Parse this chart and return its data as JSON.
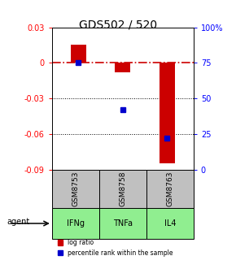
{
  "title": "GDS502 / 520",
  "samples": [
    "GSM8753",
    "GSM8758",
    "GSM8763"
  ],
  "agents": [
    "IFNg",
    "TNFa",
    "IL4"
  ],
  "log_ratios": [
    0.015,
    -0.008,
    -0.085
  ],
  "percentile_ranks": [
    75,
    42,
    22
  ],
  "ylim_left": [
    -0.09,
    0.03
  ],
  "ylim_right": [
    0,
    100
  ],
  "yticks_left": [
    -0.09,
    -0.06,
    -0.03,
    0.0,
    0.03
  ],
  "ytick_labels_left": [
    "-0.09",
    "-0.06",
    "-0.03",
    "0",
    "0.03"
  ],
  "yticks_right": [
    0,
    25,
    50,
    75,
    100
  ],
  "ytick_labels_right": [
    "0",
    "25",
    "50",
    "75",
    "100%"
  ],
  "bar_color": "#cc0000",
  "percentile_color": "#0000cc",
  "zero_line_color": "#cc0000",
  "grid_color": "#000000",
  "sample_box_color": "#c0c0c0",
  "agent_box_color": "#90ee90",
  "background_color": "#ffffff",
  "bar_width": 0.35,
  "legend_labels": [
    "log ratio",
    "percentile rank within the sample"
  ]
}
